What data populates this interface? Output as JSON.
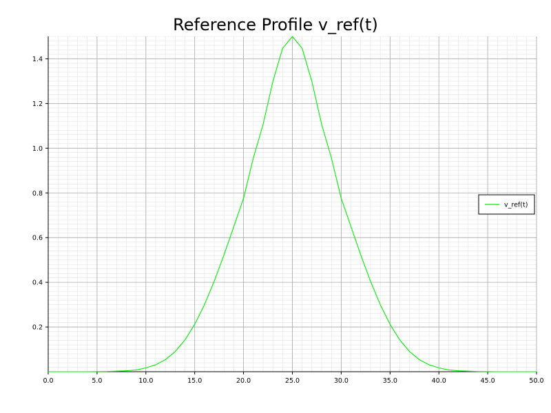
{
  "chart_data": {
    "type": "line",
    "title": "Reference Profile v_ref(t)",
    "xlabel": "",
    "ylabel": "",
    "xlim": [
      0,
      50
    ],
    "ylim": [
      0,
      1.5
    ],
    "x_ticks": [
      "0.0",
      "5.0",
      "10.0",
      "15.0",
      "20.0",
      "25.0",
      "30.0",
      "35.0",
      "40.0",
      "45.0",
      "50.0"
    ],
    "y_ticks": [
      "0.2",
      "0.4",
      "0.6",
      "0.8",
      "1.0",
      "1.2",
      "1.4"
    ],
    "grid": true,
    "legend_position": "right",
    "series": [
      {
        "name": "v_ref(t)",
        "color": "#00ee00",
        "x": [
          0,
          2,
          4,
          6,
          8,
          9,
          10,
          11,
          12,
          13,
          14,
          15,
          16,
          17,
          18,
          19,
          20,
          21,
          22,
          23,
          24,
          25,
          26,
          27,
          28,
          29,
          30,
          31,
          32,
          33,
          34,
          35,
          36,
          37,
          38,
          39,
          40,
          41,
          42,
          44,
          46,
          48,
          50
        ],
        "y": [
          0.0,
          0.0,
          0.0,
          0.001,
          0.004,
          0.008,
          0.017,
          0.031,
          0.054,
          0.09,
          0.142,
          0.212,
          0.3,
          0.405,
          0.523,
          0.649,
          0.776,
          0.956,
          1.106,
          1.298,
          1.447,
          1.5,
          1.447,
          1.298,
          1.106,
          0.956,
          0.776,
          0.649,
          0.523,
          0.405,
          0.3,
          0.212,
          0.142,
          0.09,
          0.054,
          0.031,
          0.017,
          0.008,
          0.004,
          0.001,
          0.0,
          0.0,
          0.0
        ]
      }
    ]
  }
}
